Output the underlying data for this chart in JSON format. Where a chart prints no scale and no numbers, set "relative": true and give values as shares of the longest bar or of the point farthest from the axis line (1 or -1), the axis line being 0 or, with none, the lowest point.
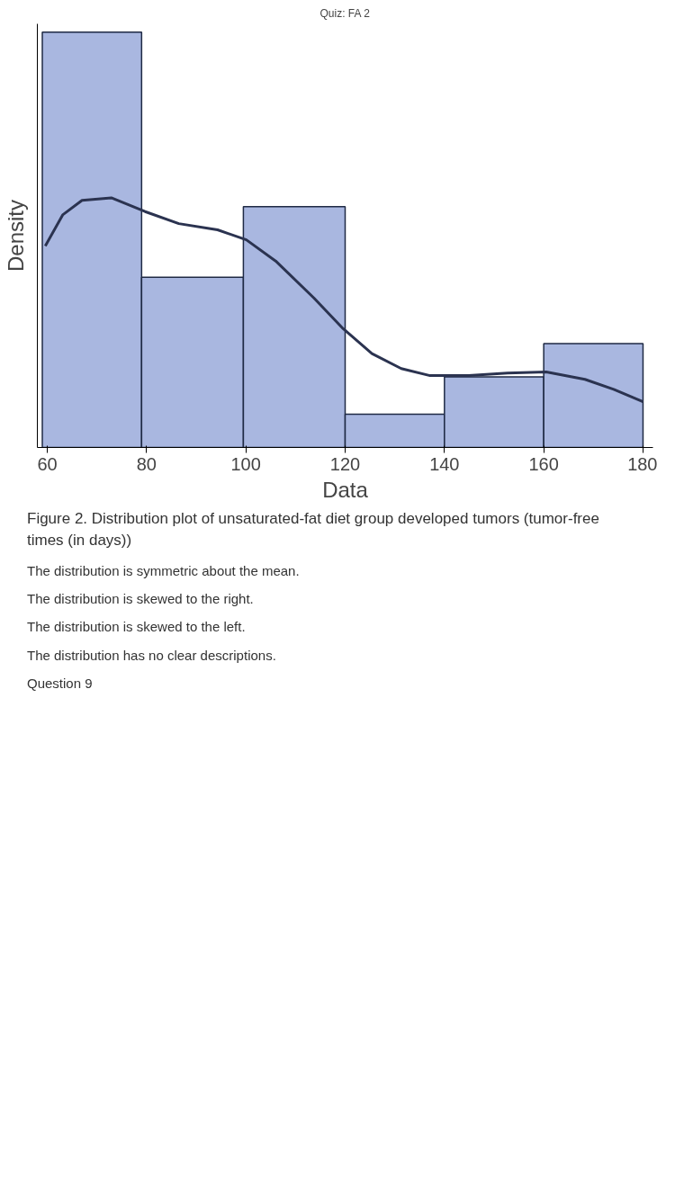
{
  "chart_data": {
    "type": "histogram",
    "title": "Quiz: FA 2",
    "xlabel": "Data",
    "ylabel": "Density",
    "relative": true,
    "grid": false,
    "bins": [
      59,
      79,
      99.5,
      120,
      140,
      160,
      180
    ],
    "values": [
      1,
      0.41,
      0.58,
      0.08,
      0.17,
      0.25
    ],
    "color": "#a9b7e0",
    "xlim": [
      58,
      182
    ],
    "xticks": [
      60,
      80,
      100,
      120,
      140,
      160,
      180
    ],
    "series": [
      {
        "type": "line",
        "color": "#2b3350",
        "x": [
          59.6,
          63.1,
          67.0,
          72.9,
          79.7,
          86.5,
          94.3,
          100.1,
          106.0,
          113.7,
          119.6,
          125.4,
          131.3,
          137.1,
          144.9,
          152.7,
          160.5,
          168.3,
          174.1,
          180.0
        ],
        "values": [
          0.485,
          0.56,
          0.595,
          0.601,
          0.568,
          0.539,
          0.524,
          0.5,
          0.449,
          0.36,
          0.286,
          0.226,
          0.19,
          0.173,
          0.173,
          0.179,
          0.182,
          0.164,
          0.14,
          0.11
        ]
      }
    ],
    "annotations": [
      "Figure 2. Distribution plot of unsaturated-fat diet group developed tumors (tumor-free times (in days))",
      "The distribution is symmetric about the mean.",
      "The distribution is skewed to the right.",
      "The distribution is skewed to the left.",
      "The distribution has no clear descriptions.",
      "Question 9"
    ]
  }
}
